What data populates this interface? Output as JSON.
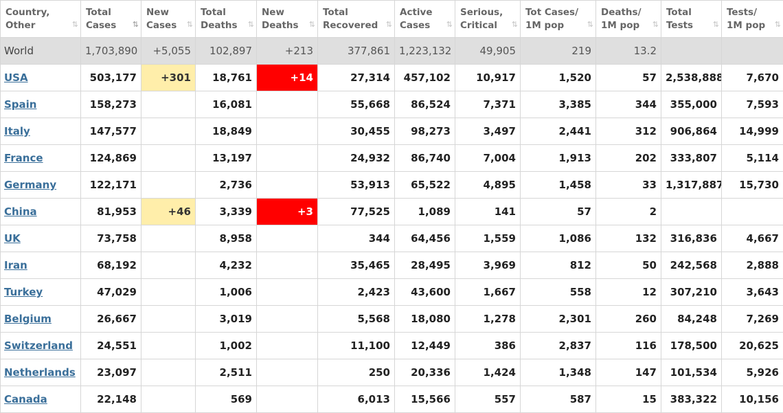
{
  "columns": [
    {
      "id": "country",
      "line1": "Country,",
      "line2": "Other",
      "sort": "⇅",
      "sorted": false
    },
    {
      "id": "total_cases",
      "line1": "Total",
      "line2": "Cases",
      "sort": "⇅",
      "sorted": true
    },
    {
      "id": "new_cases",
      "line1": "New",
      "line2": "Cases",
      "sort": "⇅",
      "sorted": false
    },
    {
      "id": "total_deaths",
      "line1": "Total",
      "line2": "Deaths",
      "sort": "⇅",
      "sorted": false
    },
    {
      "id": "new_deaths",
      "line1": "New",
      "line2": "Deaths",
      "sort": "⇅",
      "sorted": false
    },
    {
      "id": "total_recovered",
      "line1": "Total",
      "line2": "Recovered",
      "sort": "⇅",
      "sorted": false
    },
    {
      "id": "active_cases",
      "line1": "Active",
      "line2": "Cases",
      "sort": "⇅",
      "sorted": false
    },
    {
      "id": "serious_critical",
      "line1": "Serious,",
      "line2": "Critical",
      "sort": "⇅",
      "sorted": false
    },
    {
      "id": "tot_cases_1m",
      "line1": "Tot Cases/",
      "line2": "1M pop",
      "sort": "⇅",
      "sorted": false
    },
    {
      "id": "deaths_1m",
      "line1": "Deaths/",
      "line2": "1M pop",
      "sort": "⇅",
      "sorted": false
    },
    {
      "id": "total_tests",
      "line1": "Total",
      "line2": "Tests",
      "sort": "⇅",
      "sorted": false
    },
    {
      "id": "tests_1m",
      "line1": "Tests/",
      "line2": "1M pop",
      "sort": "⇅",
      "sorted": false
    }
  ],
  "world": [
    "World",
    "1,703,890",
    "+5,055",
    "102,897",
    "+213",
    "377,861",
    "1,223,132",
    "49,905",
    "219",
    "13.2",
    "",
    ""
  ],
  "rows": [
    [
      "USA",
      "503,177",
      "+301",
      "18,761",
      "+14",
      "27,314",
      "457,102",
      "10,917",
      "1,520",
      "57",
      "2,538,888",
      "7,670"
    ],
    [
      "Spain",
      "158,273",
      "",
      "16,081",
      "",
      "55,668",
      "86,524",
      "7,371",
      "3,385",
      "344",
      "355,000",
      "7,593"
    ],
    [
      "Italy",
      "147,577",
      "",
      "18,849",
      "",
      "30,455",
      "98,273",
      "3,497",
      "2,441",
      "312",
      "906,864",
      "14,999"
    ],
    [
      "France",
      "124,869",
      "",
      "13,197",
      "",
      "24,932",
      "86,740",
      "7,004",
      "1,913",
      "202",
      "333,807",
      "5,114"
    ],
    [
      "Germany",
      "122,171",
      "",
      "2,736",
      "",
      "53,913",
      "65,522",
      "4,895",
      "1,458",
      "33",
      "1,317,887",
      "15,730"
    ],
    [
      "China",
      "81,953",
      "+46",
      "3,339",
      "+3",
      "77,525",
      "1,089",
      "141",
      "57",
      "2",
      "",
      ""
    ],
    [
      "UK",
      "73,758",
      "",
      "8,958",
      "",
      "344",
      "64,456",
      "1,559",
      "1,086",
      "132",
      "316,836",
      "4,667"
    ],
    [
      "Iran",
      "68,192",
      "",
      "4,232",
      "",
      "35,465",
      "28,495",
      "3,969",
      "812",
      "50",
      "242,568",
      "2,888"
    ],
    [
      "Turkey",
      "47,029",
      "",
      "1,006",
      "",
      "2,423",
      "43,600",
      "1,667",
      "558",
      "12",
      "307,210",
      "3,643"
    ],
    [
      "Belgium",
      "26,667",
      "",
      "3,019",
      "",
      "5,568",
      "18,080",
      "1,278",
      "2,301",
      "260",
      "84,248",
      "7,269"
    ],
    [
      "Switzerland",
      "24,551",
      "",
      "1,002",
      "",
      "11,100",
      "12,449",
      "386",
      "2,837",
      "116",
      "178,500",
      "20,625"
    ],
    [
      "Netherlands",
      "23,097",
      "",
      "2,511",
      "",
      "250",
      "20,336",
      "1,424",
      "1,348",
      "147",
      "101,534",
      "5,926"
    ],
    [
      "Canada",
      "22,148",
      "",
      "569",
      "",
      "6,013",
      "15,566",
      "557",
      "587",
      "15",
      "383,322",
      "10,156"
    ]
  ],
  "colors": {
    "new_cases_highlight": "#ffeeaa",
    "new_deaths_highlight": "#ff0000",
    "world_row_bg": "#dfdfdf",
    "country_link": "#3a6f9a"
  }
}
